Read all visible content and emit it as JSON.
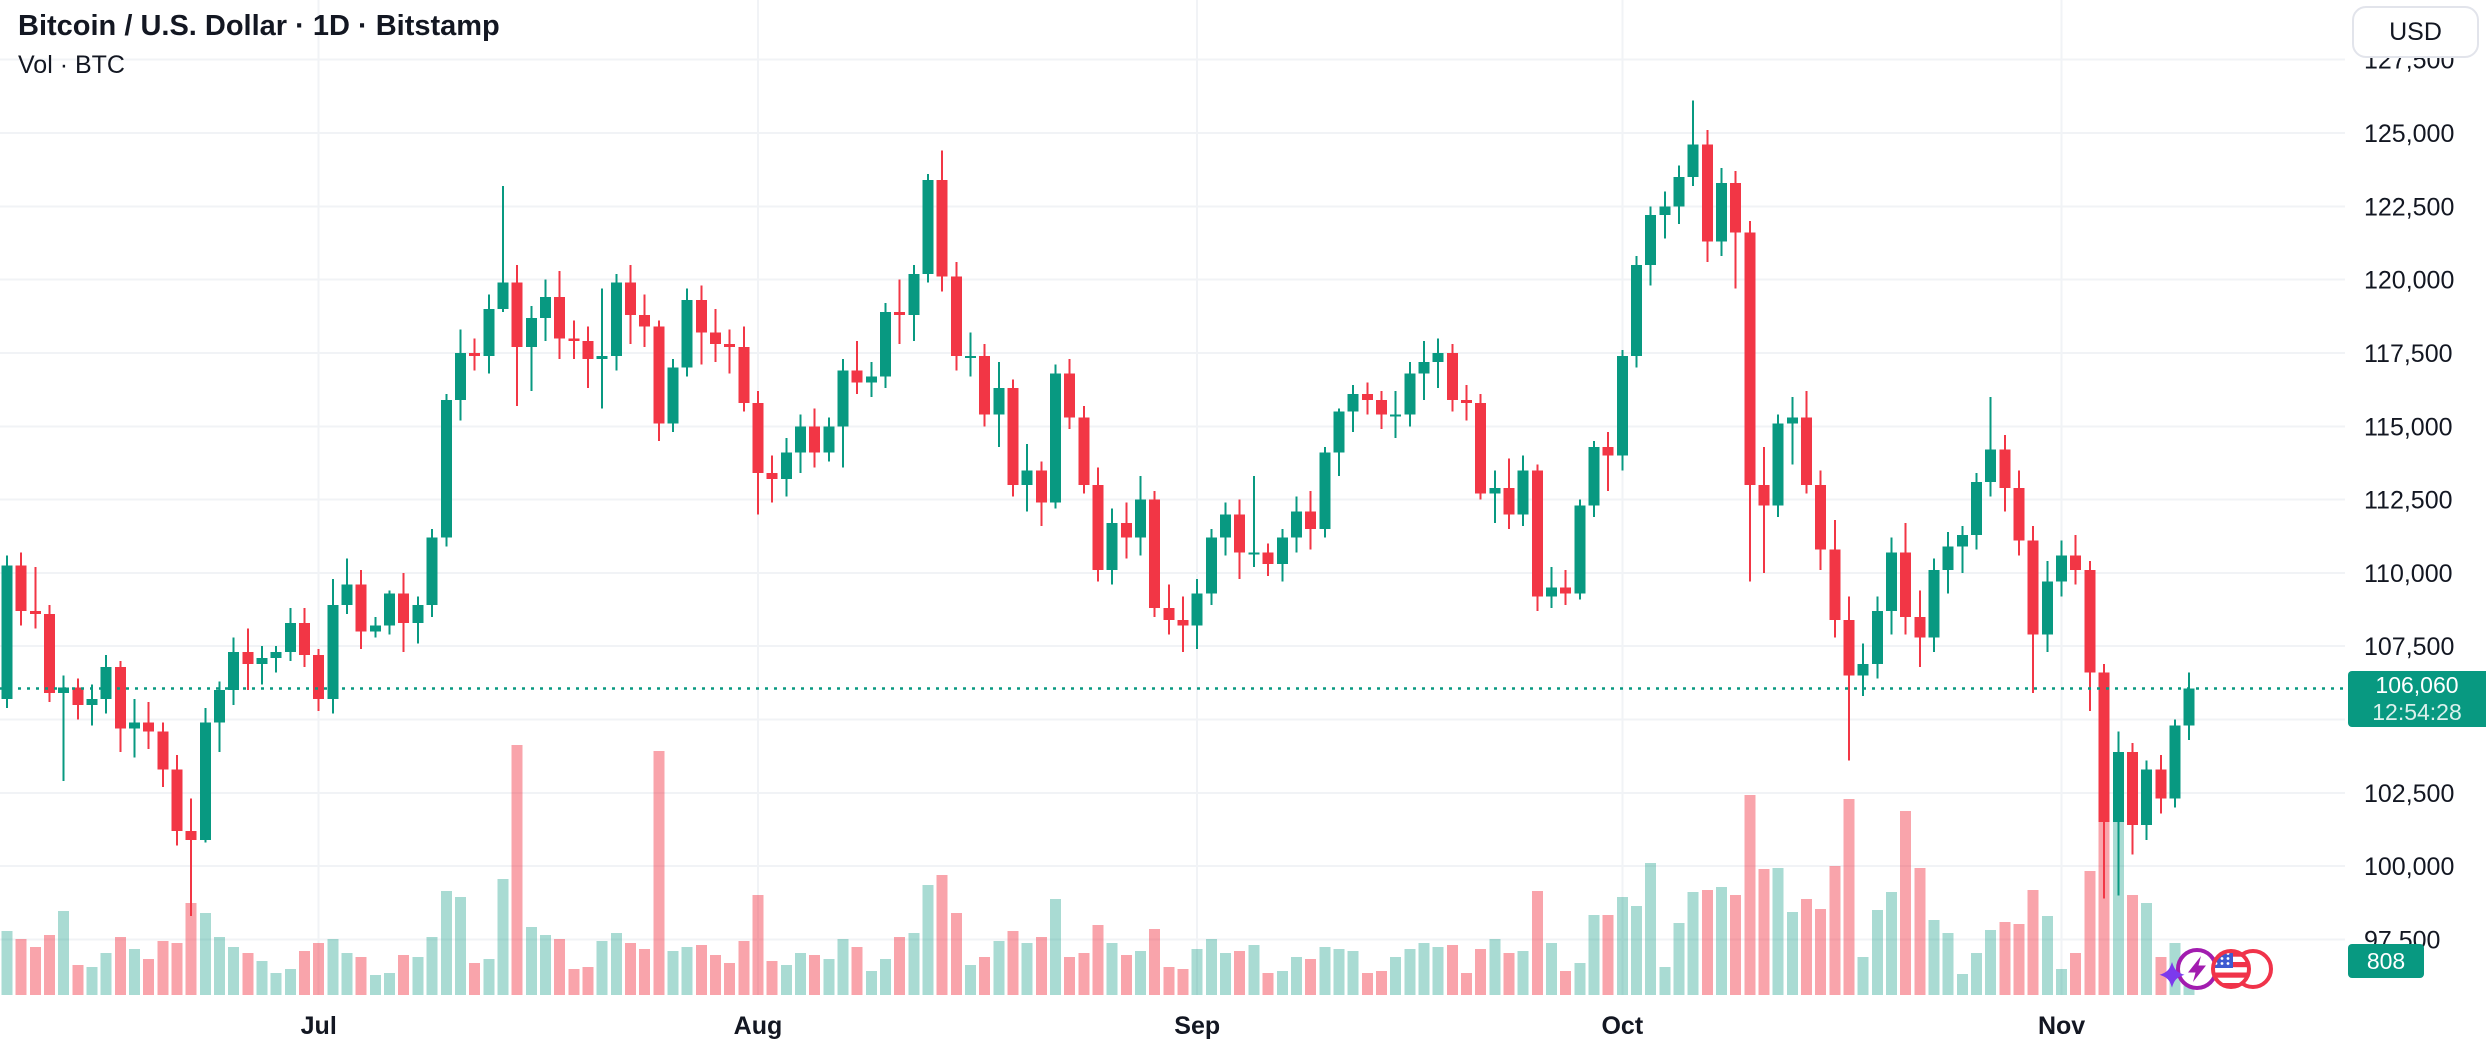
{
  "header": {
    "title": "Bitcoin / U.S. Dollar · 1D · Bitstamp",
    "subtitle": "Vol · BTC"
  },
  "price_scale": {
    "currency_button": "USD",
    "ticks": [
      {
        "price": 127500,
        "label": "127,500"
      },
      {
        "price": 125000,
        "label": "125,000"
      },
      {
        "price": 122500,
        "label": "122,500"
      },
      {
        "price": 120000,
        "label": "120,000"
      },
      {
        "price": 117500,
        "label": "117,500"
      },
      {
        "price": 115000,
        "label": "115,000"
      },
      {
        "price": 112500,
        "label": "112,500"
      },
      {
        "price": 110000,
        "label": "110,000"
      },
      {
        "price": 107500,
        "label": "107,500"
      },
      {
        "price": 105000,
        "label": null
      },
      {
        "price": 102500,
        "label": "102,500"
      },
      {
        "price": 100000,
        "label": "100,000"
      },
      {
        "price": 97500,
        "label": "97,500"
      }
    ]
  },
  "time_scale": {
    "months": [
      {
        "label": "Jul",
        "candle_index": 22
      },
      {
        "label": "Aug",
        "candle_index": 53
      },
      {
        "label": "Sep",
        "candle_index": 84
      },
      {
        "label": "Oct",
        "candle_index": 114
      },
      {
        "label": "Nov",
        "candle_index": 145
      }
    ]
  },
  "last_price": {
    "value": "106,060",
    "countdown": "12:54:28",
    "direction": "up"
  },
  "volume_indicator": {
    "last_value": "808"
  },
  "colors": {
    "up": "#089981",
    "down": "#F23645",
    "badge": "#089981",
    "text": "#131722",
    "grid": "#F1F3F6",
    "vol_up_opacity": 0.35,
    "vol_down_opacity": 0.45
  },
  "decorations": {
    "icons": [
      "sparkle-icon",
      "lightning-coin-icon",
      "us-flag-coin-icon"
    ]
  },
  "chart_data": {
    "type": "candlestick",
    "title": "Bitcoin / U.S. Dollar",
    "interval": "1D",
    "exchange": "Bitstamp",
    "grid": true,
    "ylim": [
      95600,
      129600
    ],
    "current_price": 106060,
    "volume_scale_max": 12500,
    "columns": [
      "date",
      "open",
      "high",
      "low",
      "close",
      "volume_btc"
    ],
    "candles": [
      [
        "Jun 9",
        105700,
        110600,
        105400,
        110250,
        3200
      ],
      [
        "Jun 10",
        110250,
        110700,
        108200,
        108700,
        2800
      ],
      [
        "Jun 11",
        108700,
        110200,
        108100,
        108600,
        2400
      ],
      [
        "Jun 12",
        108600,
        108900,
        105600,
        105900,
        3000
      ],
      [
        "Jun 13",
        105900,
        106500,
        102900,
        106100,
        4200
      ],
      [
        "Jun 14",
        106100,
        106400,
        105000,
        105500,
        1500
      ],
      [
        "Jun 15",
        105500,
        106200,
        104800,
        105700,
        1400
      ],
      [
        "Jun 16",
        105700,
        107200,
        105200,
        106800,
        2100
      ],
      [
        "Jun 17",
        106800,
        107000,
        103900,
        104700,
        2900
      ],
      [
        "Jun 18",
        104700,
        105700,
        103700,
        104900,
        2300
      ],
      [
        "Jun 19",
        104900,
        105600,
        104000,
        104600,
        1800
      ],
      [
        "Jun 20",
        104600,
        104900,
        102700,
        103300,
        2700
      ],
      [
        "Jun 21",
        103300,
        103800,
        100700,
        101200,
        2600
      ],
      [
        "Jun 22",
        101200,
        102300,
        98300,
        100900,
        4600
      ],
      [
        "Jun 23",
        100900,
        105400,
        100800,
        104900,
        4100
      ],
      [
        "Jun 24",
        104900,
        106300,
        103900,
        106000,
        2900
      ],
      [
        "Jun 25",
        106000,
        107800,
        105500,
        107300,
        2400
      ],
      [
        "Jun 26",
        107300,
        108100,
        106000,
        106900,
        2100
      ],
      [
        "Jun 27",
        106900,
        107500,
        106200,
        107100,
        1700
      ],
      [
        "Jun 28",
        107100,
        107500,
        106600,
        107300,
        1100
      ],
      [
        "Jun 29",
        107300,
        108800,
        107000,
        108300,
        1300
      ],
      [
        "Jun 30",
        108300,
        108800,
        106800,
        107200,
        2200
      ],
      [
        "Jul 1",
        107200,
        107400,
        105300,
        105700,
        2600
      ],
      [
        "Jul 2",
        105700,
        109800,
        105200,
        108900,
        2800
      ],
      [
        "Jul 3",
        108900,
        110500,
        108600,
        109600,
        2100
      ],
      [
        "Jul 4",
        109600,
        110100,
        107400,
        108000,
        1900
      ],
      [
        "Jul 5",
        108000,
        108500,
        107800,
        108200,
        1000
      ],
      [
        "Jul 6",
        108200,
        109400,
        107900,
        109300,
        1100
      ],
      [
        "Jul 7",
        109300,
        110000,
        107300,
        108300,
        2000
      ],
      [
        "Jul 8",
        108300,
        109200,
        107600,
        108900,
        1900
      ],
      [
        "Jul 9",
        108900,
        111500,
        108500,
        111200,
        2900
      ],
      [
        "Jul 10",
        111200,
        116100,
        110900,
        115900,
        5200
      ],
      [
        "Jul 11",
        115900,
        118300,
        115200,
        117500,
        4900
      ],
      [
        "Jul 12",
        117500,
        118000,
        116900,
        117400,
        1600
      ],
      [
        "Jul 13",
        117400,
        119500,
        116800,
        119000,
        1800
      ],
      [
        "Jul 14",
        119000,
        123200,
        118900,
        119900,
        5800
      ],
      [
        "Jul 15",
        119900,
        120500,
        115700,
        117700,
        12500
      ],
      [
        "Jul 16",
        117700,
        119100,
        116200,
        118700,
        3400
      ],
      [
        "Jul 17",
        118700,
        120000,
        117900,
        119400,
        3000
      ],
      [
        "Jul 18",
        119400,
        120300,
        117300,
        118000,
        2800
      ],
      [
        "Jul 19",
        118000,
        118600,
        117300,
        117900,
        1300
      ],
      [
        "Jul 20",
        117900,
        118400,
        116300,
        117300,
        1400
      ],
      [
        "Jul 21",
        117300,
        119700,
        115600,
        117400,
        2700
      ],
      [
        "Jul 22",
        117400,
        120200,
        116900,
        119900,
        3100
      ],
      [
        "Jul 23",
        119900,
        120500,
        117800,
        118800,
        2600
      ],
      [
        "Jul 24",
        118800,
        119500,
        117700,
        118400,
        2300
      ],
      [
        "Jul 25",
        118400,
        118600,
        114500,
        115100,
        12200
      ],
      [
        "Jul 26",
        115100,
        117300,
        114800,
        117000,
        2200
      ],
      [
        "Jul 27",
        117000,
        119700,
        116700,
        119300,
        2400
      ],
      [
        "Jul 28",
        119300,
        119800,
        117100,
        118200,
        2500
      ],
      [
        "Jul 29",
        118200,
        119000,
        117200,
        117800,
        2000
      ],
      [
        "Jul 30",
        117800,
        118300,
        116800,
        117700,
        1600
      ],
      [
        "Jul 31",
        117700,
        118400,
        115500,
        115800,
        2700
      ],
      [
        "Aug 1",
        115800,
        116200,
        112000,
        113400,
        5000
      ],
      [
        "Aug 2",
        113400,
        114000,
        112400,
        113200,
        1700
      ],
      [
        "Aug 3",
        113200,
        114600,
        112600,
        114100,
        1500
      ],
      [
        "Aug 4",
        114100,
        115400,
        113400,
        115000,
        2100
      ],
      [
        "Aug 5",
        115000,
        115600,
        113600,
        114100,
        2000
      ],
      [
        "Aug 6",
        114100,
        115300,
        113800,
        115000,
        1800
      ],
      [
        "Aug 7",
        115000,
        117300,
        113600,
        116900,
        2800
      ],
      [
        "Aug 8",
        116900,
        117900,
        116100,
        116500,
        2400
      ],
      [
        "Aug 9",
        116500,
        117200,
        116000,
        116700,
        1200
      ],
      [
        "Aug 10",
        116700,
        119200,
        116300,
        118900,
        1800
      ],
      [
        "Aug 11",
        118900,
        120000,
        117800,
        118800,
        2900
      ],
      [
        "Aug 12",
        118800,
        120500,
        117900,
        120200,
        3100
      ],
      [
        "Aug 13",
        120200,
        123600,
        119900,
        123400,
        5500
      ],
      [
        "Aug 14",
        123400,
        124400,
        119600,
        120100,
        6000
      ],
      [
        "Aug 15",
        120100,
        120600,
        116900,
        117400,
        4100
      ],
      [
        "Aug 16",
        117400,
        118200,
        116700,
        117400,
        1500
      ],
      [
        "Aug 17",
        117400,
        117800,
        115000,
        115400,
        1900
      ],
      [
        "Aug 18",
        115400,
        117200,
        114300,
        116300,
        2700
      ],
      [
        "Aug 19",
        116300,
        116600,
        112600,
        113000,
        3200
      ],
      [
        "Aug 20",
        113000,
        114400,
        112100,
        113500,
        2600
      ],
      [
        "Aug 21",
        113500,
        113800,
        111600,
        112400,
        2900
      ],
      [
        "Aug 22",
        112400,
        117100,
        112200,
        116800,
        4800
      ],
      [
        "Aug 23",
        116800,
        117300,
        114900,
        115300,
        1900
      ],
      [
        "Aug 24",
        115300,
        115700,
        112700,
        113000,
        2100
      ],
      [
        "Aug 25",
        113000,
        113600,
        109700,
        110100,
        3500
      ],
      [
        "Aug 26",
        110100,
        112200,
        109600,
        111700,
        2600
      ],
      [
        "Aug 27",
        111700,
        112400,
        110500,
        111200,
        2000
      ],
      [
        "Aug 28",
        111200,
        113300,
        110600,
        112500,
        2200
      ],
      [
        "Aug 29",
        112500,
        112800,
        108500,
        108800,
        3300
      ],
      [
        "Aug 30",
        108800,
        109600,
        107900,
        108400,
        1400
      ],
      [
        "Aug 31",
        108400,
        109200,
        107300,
        108200,
        1300
      ],
      [
        "Sep 1",
        108200,
        109800,
        107400,
        109300,
        2300
      ],
      [
        "Sep 2",
        109300,
        111500,
        108900,
        111200,
        2800
      ],
      [
        "Sep 3",
        111200,
        112400,
        110600,
        112000,
        2100
      ],
      [
        "Sep 4",
        112000,
        112500,
        109800,
        110700,
        2200
      ],
      [
        "Sep 5",
        110700,
        113300,
        110200,
        110700,
        2500
      ],
      [
        "Sep 6",
        110700,
        111000,
        109900,
        110300,
        1100
      ],
      [
        "Sep 7",
        110300,
        111500,
        109700,
        111200,
        1200
      ],
      [
        "Sep 8",
        111200,
        112600,
        110700,
        112100,
        1900
      ],
      [
        "Sep 9",
        112100,
        112800,
        110800,
        111500,
        1800
      ],
      [
        "Sep 10",
        111500,
        114300,
        111200,
        114100,
        2400
      ],
      [
        "Sep 11",
        114100,
        115600,
        113300,
        115500,
        2300
      ],
      [
        "Sep 12",
        115500,
        116400,
        114800,
        116100,
        2200
      ],
      [
        "Sep 13",
        116100,
        116500,
        115400,
        115900,
        1100
      ],
      [
        "Sep 14",
        115900,
        116200,
        114900,
        115400,
        1200
      ],
      [
        "Sep 15",
        115400,
        116200,
        114600,
        115400,
        1900
      ],
      [
        "Sep 16",
        115400,
        117200,
        115000,
        116800,
        2300
      ],
      [
        "Sep 17",
        116800,
        117900,
        115900,
        117200,
        2600
      ],
      [
        "Sep 18",
        117200,
        118000,
        116300,
        117500,
        2400
      ],
      [
        "Sep 19",
        117500,
        117800,
        115500,
        115900,
        2500
      ],
      [
        "Sep 20",
        115900,
        116400,
        115200,
        115800,
        1100
      ],
      [
        "Sep 21",
        115800,
        116100,
        112500,
        112700,
        2300
      ],
      [
        "Sep 22",
        112700,
        113500,
        111700,
        112900,
        2800
      ],
      [
        "Sep 23",
        112900,
        113900,
        111500,
        112000,
        2100
      ],
      [
        "Sep 24",
        112000,
        114000,
        111600,
        113500,
        2200
      ],
      [
        "Sep 25",
        113500,
        113700,
        108700,
        109200,
        5200
      ],
      [
        "Sep 26",
        109200,
        110200,
        108800,
        109500,
        2600
      ],
      [
        "Sep 27",
        109500,
        110100,
        108900,
        109300,
        1200
      ],
      [
        "Sep 28",
        109300,
        112500,
        109100,
        112300,
        1600
      ],
      [
        "Sep 29",
        112300,
        114500,
        111900,
        114300,
        4000
      ],
      [
        "Sep 30",
        114300,
        114800,
        112800,
        114000,
        4000
      ],
      [
        "Oct 1",
        114000,
        117600,
        113500,
        117400,
        4900
      ],
      [
        "Oct 2",
        117400,
        120800,
        117000,
        120500,
        4450
      ],
      [
        "Oct 3",
        120500,
        122500,
        119800,
        122200,
        6600
      ],
      [
        "Oct 4",
        122200,
        123000,
        121400,
        122500,
        1400
      ],
      [
        "Oct 5",
        122500,
        123900,
        121900,
        123500,
        3600
      ],
      [
        "Oct 6",
        123500,
        126100,
        123200,
        124600,
        5150
      ],
      [
        "Oct 7",
        124600,
        125100,
        120600,
        121300,
        5250
      ],
      [
        "Oct 8",
        121300,
        123800,
        120800,
        123300,
        5400
      ],
      [
        "Oct 9",
        123300,
        123700,
        119700,
        121600,
        5000
      ],
      [
        "Oct 10",
        121600,
        122000,
        109700,
        113000,
        10000
      ],
      [
        "Oct 11",
        113000,
        114300,
        110000,
        112300,
        6300
      ],
      [
        "Oct 12",
        112300,
        115400,
        111900,
        115100,
        6350
      ],
      [
        "Oct 13",
        115100,
        116000,
        113700,
        115300,
        4150
      ],
      [
        "Oct 14",
        115300,
        116200,
        112700,
        113000,
        4800
      ],
      [
        "Oct 15",
        113000,
        113500,
        110100,
        110800,
        4300
      ],
      [
        "Oct 16",
        110800,
        111800,
        107800,
        108400,
        6450
      ],
      [
        "Oct 17",
        108400,
        109200,
        103600,
        106500,
        9800
      ],
      [
        "Oct 18",
        106500,
        107600,
        105800,
        106900,
        1900
      ],
      [
        "Oct 19",
        106900,
        109200,
        106400,
        108700,
        4250
      ],
      [
        "Oct 20",
        108700,
        111200,
        107900,
        110700,
        5150
      ],
      [
        "Oct 21",
        110700,
        111700,
        107900,
        108500,
        9200
      ],
      [
        "Oct 22",
        108500,
        109400,
        106800,
        107800,
        6350
      ],
      [
        "Oct 23",
        107800,
        110500,
        107300,
        110100,
        3750
      ],
      [
        "Oct 24",
        110100,
        111400,
        109300,
        110900,
        3100
      ],
      [
        "Oct 25",
        110900,
        111600,
        110000,
        111300,
        1050
      ],
      [
        "Oct 26",
        111300,
        113400,
        110800,
        113100,
        2100
      ],
      [
        "Oct 27",
        113100,
        116000,
        112600,
        114200,
        3250
      ],
      [
        "Oct 28",
        114200,
        114700,
        112100,
        112900,
        3650
      ],
      [
        "Oct 29",
        112900,
        113500,
        110600,
        111100,
        3550
      ],
      [
        "Oct 30",
        111100,
        111600,
        105900,
        107900,
        5250
      ],
      [
        "Oct 31",
        107900,
        110400,
        107300,
        109700,
        3950
      ],
      [
        "Nov 1",
        109700,
        111100,
        109200,
        110600,
        1300
      ],
      [
        "Nov 2",
        110600,
        111300,
        109600,
        110100,
        2100
      ],
      [
        "Nov 3",
        110100,
        110400,
        105300,
        106600,
        6200
      ],
      [
        "Nov 4",
        106600,
        106900,
        98900,
        101500,
        11300
      ],
      [
        "Nov 5",
        101500,
        104600,
        99000,
        103900,
        9000
      ],
      [
        "Nov 6",
        103900,
        104200,
        100400,
        101400,
        5000
      ],
      [
        "Nov 7",
        101400,
        103600,
        100900,
        103300,
        4600
      ],
      [
        "Nov 8",
        103300,
        103800,
        101800,
        102300,
        1900
      ],
      [
        "Nov 9",
        102300,
        105000,
        102000,
        104800,
        2600
      ],
      [
        "Nov 10",
        104800,
        106600,
        104300,
        106060,
        808
      ]
    ]
  }
}
